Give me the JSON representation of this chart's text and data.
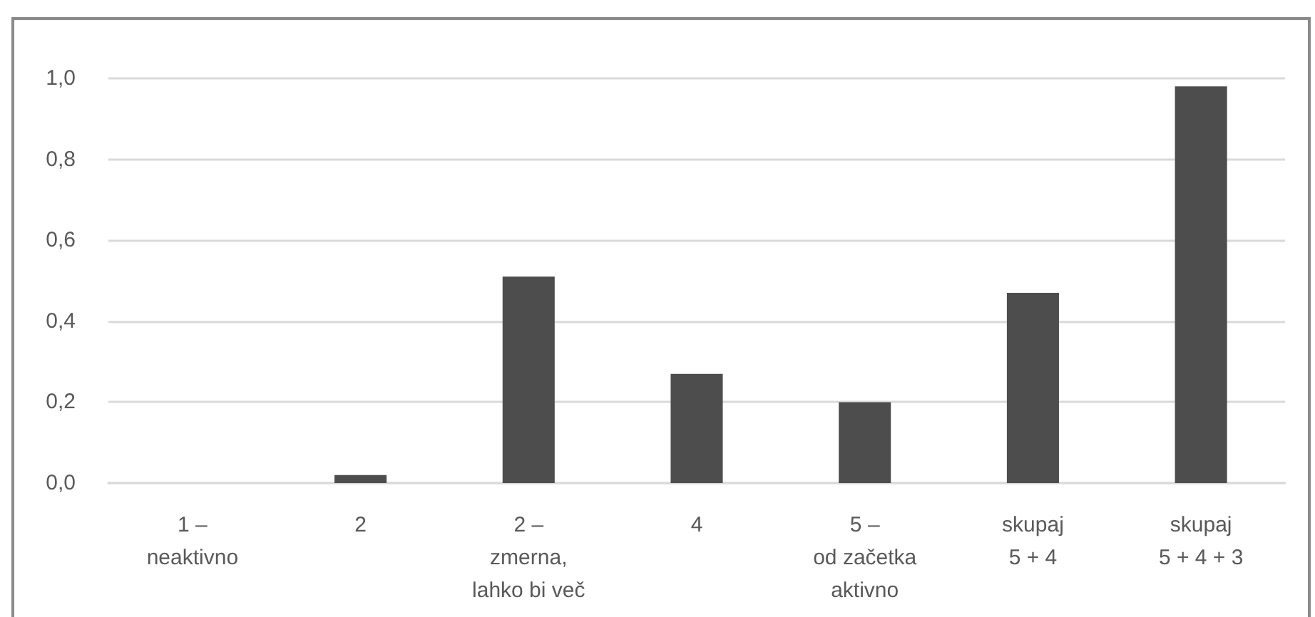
{
  "chart_data": {
    "type": "bar",
    "categories": [
      "1 –\nneaktivno",
      "2",
      "2 –\nzmerna,\nlahko bi več",
      "4",
      "5 –\nod začetka\naktivno",
      "skupaj\n5 + 4",
      "skupaj\n5 + 4 + 3"
    ],
    "values": [
      0,
      0.02,
      0.51,
      0.27,
      0.2,
      0.47,
      0.98
    ],
    "color": "#4d4d4d",
    "ylim": [
      0,
      1
    ],
    "yticks": [
      {
        "value": 0,
        "label": "0,0"
      },
      {
        "value": 0.2,
        "label": "0,2"
      },
      {
        "value": 0.4,
        "label": "0,4"
      },
      {
        "value": 0.6,
        "label": "0,6"
      },
      {
        "value": 0.8,
        "label": "0,8"
      },
      {
        "value": 1,
        "label": "1,0"
      }
    ],
    "grid": "y"
  }
}
